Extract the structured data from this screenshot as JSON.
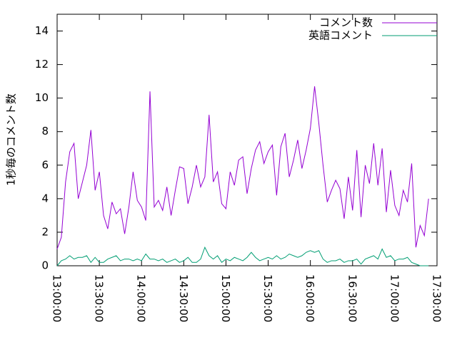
{
  "chart_data": {
    "type": "line",
    "y_label": "1秒毎のコメント数",
    "x": [
      "13:00:00",
      "13:03:00",
      "13:06:00",
      "13:09:00",
      "13:12:00",
      "13:15:00",
      "13:18:00",
      "13:21:00",
      "13:24:00",
      "13:27:00",
      "13:30:00",
      "13:33:00",
      "13:36:00",
      "13:39:00",
      "13:42:00",
      "13:45:00",
      "13:48:00",
      "13:51:00",
      "13:54:00",
      "13:57:00",
      "14:00:00",
      "14:03:00",
      "14:06:00",
      "14:09:00",
      "14:12:00",
      "14:15:00",
      "14:18:00",
      "14:21:00",
      "14:24:00",
      "14:27:00",
      "14:30:00",
      "14:33:00",
      "14:36:00",
      "14:39:00",
      "14:42:00",
      "14:45:00",
      "14:48:00",
      "14:51:00",
      "14:54:00",
      "14:57:00",
      "15:00:00",
      "15:03:00",
      "15:06:00",
      "15:09:00",
      "15:12:00",
      "15:15:00",
      "15:18:00",
      "15:21:00",
      "15:24:00",
      "15:27:00",
      "15:30:00",
      "15:33:00",
      "15:36:00",
      "15:39:00",
      "15:42:00",
      "15:45:00",
      "15:48:00",
      "15:51:00",
      "15:54:00",
      "15:57:00",
      "16:00:00",
      "16:03:00",
      "16:06:00",
      "16:09:00",
      "16:12:00",
      "16:15:00",
      "16:18:00",
      "16:21:00",
      "16:24:00",
      "16:27:00",
      "16:30:00",
      "16:33:00",
      "16:36:00",
      "16:39:00",
      "16:42:00",
      "16:45:00",
      "16:48:00",
      "16:51:00",
      "16:54:00",
      "16:57:00",
      "17:00:00",
      "17:03:00",
      "17:06:00",
      "17:09:00",
      "17:12:00",
      "17:15:00",
      "17:18:00",
      "17:21:00",
      "17:24:00"
    ],
    "series": [
      {
        "name": "コメント数",
        "color": "#9400d3",
        "values": [
          1.0,
          1.7,
          5.0,
          6.8,
          7.3,
          4.0,
          5.0,
          6.0,
          8.1,
          4.5,
          5.6,
          3.0,
          2.2,
          3.8,
          3.1,
          3.4,
          1.9,
          3.5,
          5.6,
          3.9,
          3.5,
          2.7,
          10.4,
          3.5,
          3.9,
          3.3,
          4.7,
          3.0,
          4.5,
          5.9,
          5.8,
          3.7,
          4.7,
          6.0,
          4.7,
          5.3,
          9.0,
          5.0,
          5.6,
          3.7,
          3.4,
          5.6,
          4.8,
          6.3,
          6.5,
          4.3,
          5.8,
          6.9,
          7.4,
          6.1,
          6.8,
          7.2,
          4.2,
          7.1,
          7.9,
          5.3,
          6.3,
          7.5,
          5.8,
          6.9,
          8.2,
          10.7,
          8.5,
          6.0,
          3.8,
          4.5,
          5.1,
          4.6,
          2.8,
          5.3,
          3.3,
          6.9,
          2.9,
          6.0,
          4.9,
          7.3,
          4.8,
          7.0,
          3.2,
          5.7,
          3.6,
          3.0,
          4.5,
          3.8,
          6.1,
          1.1,
          2.4,
          1.8,
          4.0
        ]
      },
      {
        "name": "英語コメント",
        "color": "#009e73",
        "values": [
          0.0,
          0.3,
          0.4,
          0.6,
          0.4,
          0.5,
          0.5,
          0.6,
          0.2,
          0.5,
          0.2,
          0.2,
          0.4,
          0.5,
          0.6,
          0.3,
          0.4,
          0.4,
          0.3,
          0.4,
          0.3,
          0.7,
          0.4,
          0.4,
          0.3,
          0.4,
          0.2,
          0.3,
          0.4,
          0.2,
          0.3,
          0.5,
          0.2,
          0.2,
          0.4,
          1.1,
          0.6,
          0.4,
          0.6,
          0.2,
          0.4,
          0.3,
          0.5,
          0.4,
          0.3,
          0.5,
          0.8,
          0.5,
          0.3,
          0.4,
          0.5,
          0.4,
          0.6,
          0.4,
          0.5,
          0.7,
          0.6,
          0.5,
          0.6,
          0.8,
          0.9,
          0.8,
          0.9,
          0.4,
          0.2,
          0.3,
          0.3,
          0.4,
          0.2,
          0.3,
          0.3,
          0.4,
          0.1,
          0.4,
          0.5,
          0.6,
          0.4,
          1.0,
          0.5,
          0.6,
          0.3,
          0.4,
          0.4,
          0.5,
          0.2,
          0.1,
          0.0,
          0.0,
          0.0
        ]
      }
    ],
    "xlim": [
      "13:00:00",
      "17:30:00"
    ],
    "xticks": [
      "13:00:00",
      "13:30:00",
      "14:00:00",
      "14:30:00",
      "15:00:00",
      "15:30:00",
      "16:00:00",
      "16:30:00",
      "17:00:00",
      "17:30:00"
    ],
    "ylim": [
      0,
      15
    ],
    "yticks": [
      0,
      2,
      4,
      6,
      8,
      10,
      12,
      14
    ],
    "grid": false,
    "legend": "top-right"
  }
}
